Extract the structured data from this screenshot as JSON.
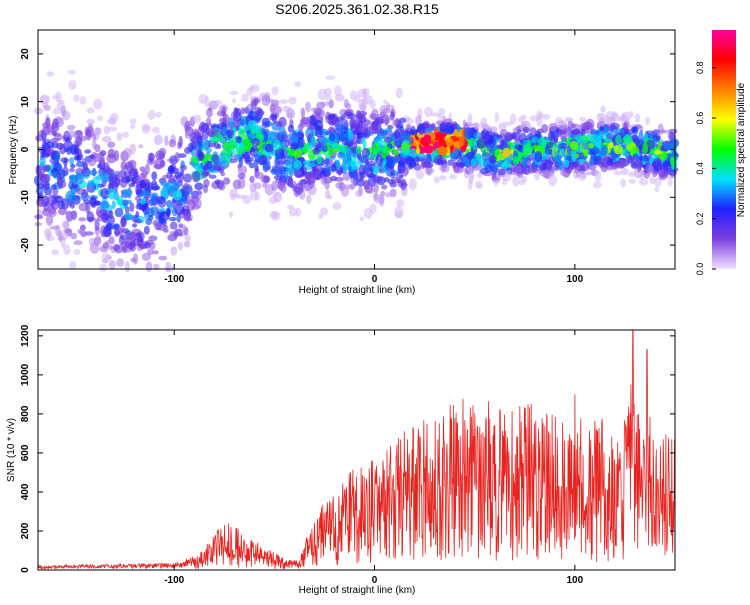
{
  "title": "S206.2025.361.02.38.R15",
  "chart_data": [
    {
      "type": "heatmap",
      "xlabel": "Height of straight line (km)",
      "ylabel": "Frequency (Hz)",
      "xlim": [
        -168,
        150
      ],
      "ylim": [
        -25,
        25
      ],
      "xticks": [
        -100,
        0,
        100
      ],
      "xtick_labels": [
        "-100",
        "0",
        "100"
      ],
      "yticks": [
        -20,
        -10,
        0,
        10,
        20
      ],
      "ytick_labels": [
        "-20",
        "-10",
        "0",
        "10",
        "20"
      ],
      "colorbar": {
        "label": "Normalized spectral amplitude",
        "range": [
          0,
          0.95
        ],
        "ticks": [
          0.0,
          0.2,
          0.4,
          0.6,
          0.8
        ],
        "tick_labels": [
          "0.0",
          "0.2",
          "0.4",
          "0.6",
          "0.8"
        ],
        "colors": [
          "#f0e0ff",
          "#8040e0",
          "#2020ff",
          "#00e0ff",
          "#00ff00",
          "#ffff00",
          "#ff8000",
          "#ff0000",
          "#ff00a0"
        ]
      },
      "energy_centerline": [
        {
          "x": -168,
          "f": -3
        },
        {
          "x": -140,
          "f": -8
        },
        {
          "x": -120,
          "f": -13
        },
        {
          "x": -100,
          "f": -10
        },
        {
          "x": -90,
          "f": -4
        },
        {
          "x": -80,
          "f": 0
        },
        {
          "x": -60,
          "f": 2
        },
        {
          "x": -40,
          "f": -1
        },
        {
          "x": -20,
          "f": 1
        },
        {
          "x": 0,
          "f": -1
        },
        {
          "x": 15,
          "f": 0
        },
        {
          "x": 25,
          "f": 1
        },
        {
          "x": 40,
          "f": 1
        },
        {
          "x": 60,
          "f": -1
        },
        {
          "x": 80,
          "f": 0
        },
        {
          "x": 100,
          "f": 0
        },
        {
          "x": 120,
          "f": 1
        },
        {
          "x": 150,
          "f": -1
        }
      ],
      "peak_amplitude_region": {
        "x_range": [
          18,
          45
        ],
        "frequency_hz": 1.5,
        "amplitude": 0.9
      }
    },
    {
      "type": "line",
      "xlabel": "Height of straight line (km)",
      "ylabel": "SNR (10 * v/v)",
      "xlim": [
        -168,
        150
      ],
      "ylim": [
        0,
        1230
      ],
      "xticks": [
        -100,
        0,
        100
      ],
      "xtick_labels": [
        "-100",
        "0",
        "100"
      ],
      "yticks": [
        0,
        200,
        400,
        600,
        800,
        1000,
        1200
      ],
      "ytick_labels": [
        "0",
        "200",
        "400",
        "600",
        "800",
        "1000",
        "1200"
      ],
      "line_color": "#e8231f",
      "series": [
        {
          "x": [
            -168,
            -120,
            -95,
            -85,
            -78,
            -72,
            -65,
            -55,
            -45,
            -38,
            -30,
            -20,
            -10,
            0,
            10,
            20,
            30,
            40,
            50,
            60,
            70,
            80,
            90,
            100,
            110,
            120,
            130,
            140,
            150
          ],
          "y": [
            15,
            20,
            25,
            60,
            110,
            140,
            90,
            70,
            30,
            25,
            150,
            220,
            280,
            320,
            360,
            390,
            440,
            470,
            460,
            460,
            470,
            450,
            420,
            420,
            420,
            400,
            460,
            410,
            360
          ]
        }
      ],
      "notable_peaks": [
        {
          "x": 129,
          "y": 1230
        },
        {
          "x": 136,
          "y": 1130
        },
        {
          "x": 100,
          "y": 900
        },
        {
          "x": 128,
          "y": 950
        }
      ]
    }
  ]
}
